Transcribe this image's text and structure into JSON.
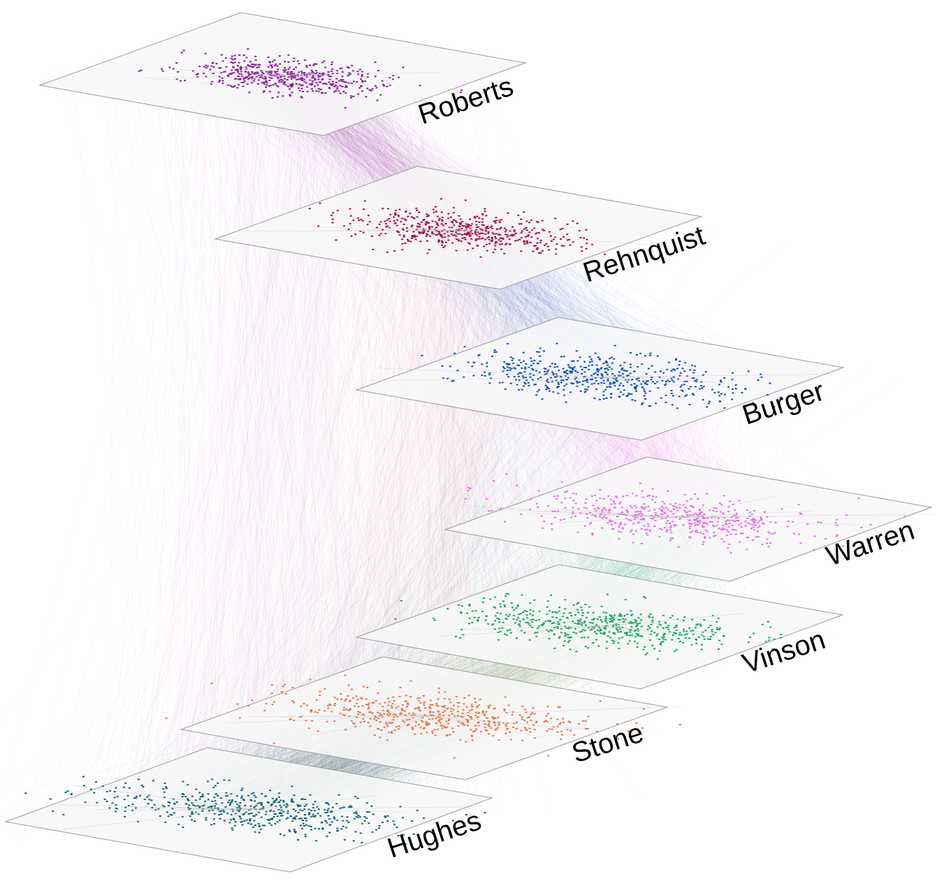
{
  "layers": [
    {
      "name": "Roberts",
      "color": "#8b1a9e"
    },
    {
      "name": "Rehnquist",
      "color": "#b0093f"
    },
    {
      "name": "Burger",
      "color": "#0a4fc0"
    },
    {
      "name": "Warren",
      "color": "#ee66ee"
    },
    {
      "name": "Vinson",
      "color": "#0aa85a"
    },
    {
      "name": "Stone",
      "color": "#f07040"
    },
    {
      "name": "Hughes",
      "color": "#0a6478"
    }
  ],
  "plane_fill": "#f7f7f7",
  "plane_edge": "#9a9a9a",
  "label_color": "#000000"
}
